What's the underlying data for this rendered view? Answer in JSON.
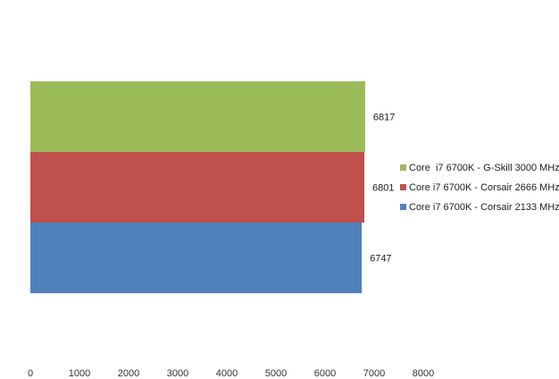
{
  "chart_data": {
    "type": "bar",
    "orientation": "horizontal",
    "stacked": false,
    "title": "",
    "xlabel": "",
    "ylabel": "",
    "xlim": [
      0,
      8000
    ],
    "x_ticks": [
      0,
      1000,
      2000,
      3000,
      4000,
      5000,
      6000,
      7000,
      8000
    ],
    "grid": false,
    "legend_position": "right",
    "series": [
      {
        "name": "Core  i7 6700K - G-Skill 3000 MHz",
        "value": 6817,
        "color": "#9BBB59"
      },
      {
        "name": "Core i7 6700K - Corsair 2666 MHz",
        "value": 6801,
        "color": "#C0504D"
      },
      {
        "name": "Core i7 6700K - Corsair 2133 MHz",
        "value": 6747,
        "color": "#4F81BD"
      }
    ]
  }
}
